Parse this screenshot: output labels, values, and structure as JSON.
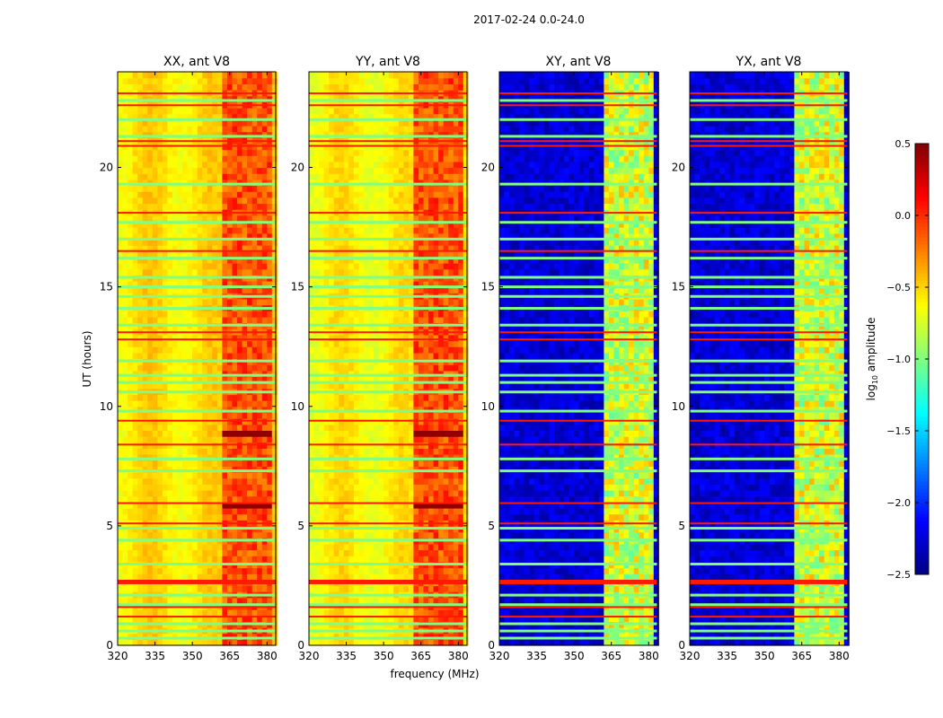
{
  "chart_data": {
    "type": "heatmap",
    "title": "2017-02-24 0.0-24.0",
    "xlabel": "frequency (MHz)",
    "ylabel": "UT (hours)",
    "xlim": [
      320,
      383.5
    ],
    "ylim": [
      0,
      24
    ],
    "xticks": [
      "320",
      "335",
      "350",
      "365",
      "380"
    ],
    "xtick_values": [
      320,
      335,
      350,
      365,
      380
    ],
    "yticks": [
      "0",
      "5",
      "10",
      "15",
      "20"
    ],
    "ytick_values": [
      0,
      5,
      10,
      15,
      20
    ],
    "panels": [
      {
        "title": "XX, ant V8",
        "base_level": -0.55,
        "band_level": -0.1,
        "show_ylabel": true
      },
      {
        "title": "YY, ant V8",
        "base_level": -0.6,
        "band_level": -0.1,
        "show_ylabel": false
      },
      {
        "title": "XY, ant V8",
        "base_level": -2.25,
        "band_level": -0.75,
        "show_ylabel": false
      },
      {
        "title": "YX, ant V8",
        "base_level": -2.25,
        "band_level": -0.75,
        "show_ylabel": false
      }
    ],
    "band_columns_mhz": [
      [
        363,
        367.5
      ],
      [
        368.5,
        372
      ],
      [
        373,
        376
      ],
      [
        377,
        381
      ]
    ],
    "flagged_green_hours": [
      0.3,
      0.6,
      0.9,
      1.7,
      2.1,
      3.4,
      4.4,
      4.9,
      7.3,
      7.8,
      9.8,
      10.6,
      11.0,
      11.3,
      11.9,
      13.4,
      14.1,
      14.6,
      15.0,
      15.4,
      16.2,
      17.0,
      17.7,
      19.3,
      21.3,
      22.0,
      22.8
    ],
    "flagged_red_hours": [
      1.2,
      1.6,
      2.65,
      5.1,
      5.95,
      8.4,
      9.4,
      12.8,
      13.1,
      16.5,
      18.1,
      20.9,
      21.1,
      22.6,
      23.1
    ],
    "colorbar": {
      "label": "log10 amplitude",
      "colormap": "jet",
      "range": [
        -2.5,
        0.5
      ],
      "ticks": [
        "0.5",
        "0.0",
        "−0.5",
        "−1.0",
        "−1.5",
        "−2.0",
        "−2.5"
      ],
      "tick_values": [
        0.5,
        0.0,
        -0.5,
        -1.0,
        -1.5,
        -2.0,
        -2.5
      ]
    }
  }
}
